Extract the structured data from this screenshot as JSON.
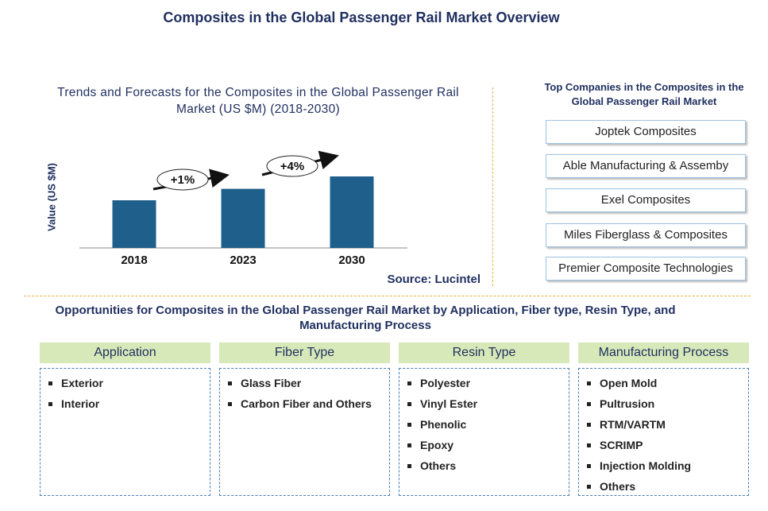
{
  "header": {
    "title": "Composites in the Global Passenger Rail Market Overview"
  },
  "chart_data": {
    "type": "bar",
    "title": "Trends and Forecasts for the Composites in the Global Passenger Rail Market (US $M) (2018-2030)",
    "y_label": "Value (US $M)",
    "categories": [
      "2018",
      "2023",
      "2030"
    ],
    "values": [
      50,
      62,
      75
    ],
    "color": "#1f5f8b",
    "ylim": [
      0,
      100
    ],
    "annotations": [
      "+1%",
      "+4%"
    ],
    "source": "Source: Lucintel"
  },
  "companies": {
    "title": "Top Companies in the Composites in the Global Passenger Rail Market",
    "items": [
      "Joptek Composites",
      "Able Manufacturing & Assemby",
      "Exel Composites",
      "Miles Fiberglass & Composites",
      "Premier Composite Technologies"
    ]
  },
  "opportunities": {
    "title": "Opportunities for Composites in the Global Passenger Rail Market by Application, Fiber type, Resin Type, and Manufacturing Process",
    "columns": [
      {
        "heading": "Application",
        "items": [
          "Exterior",
          "Interior"
        ]
      },
      {
        "heading": "Fiber Type",
        "items": [
          "Glass Fiber",
          "Carbon Fiber and Others"
        ]
      },
      {
        "heading": "Resin Type",
        "items": [
          "Polyester",
          "Vinyl Ester",
          "Phenolic",
          "Epoxy",
          "Others"
        ]
      },
      {
        "heading": "Manufacturing Process",
        "items": [
          "Open Mold",
          "Pultrusion",
          "RTM/VARTM",
          "SCRIMP",
          "Injection Molding",
          "Others"
        ]
      }
    ]
  }
}
